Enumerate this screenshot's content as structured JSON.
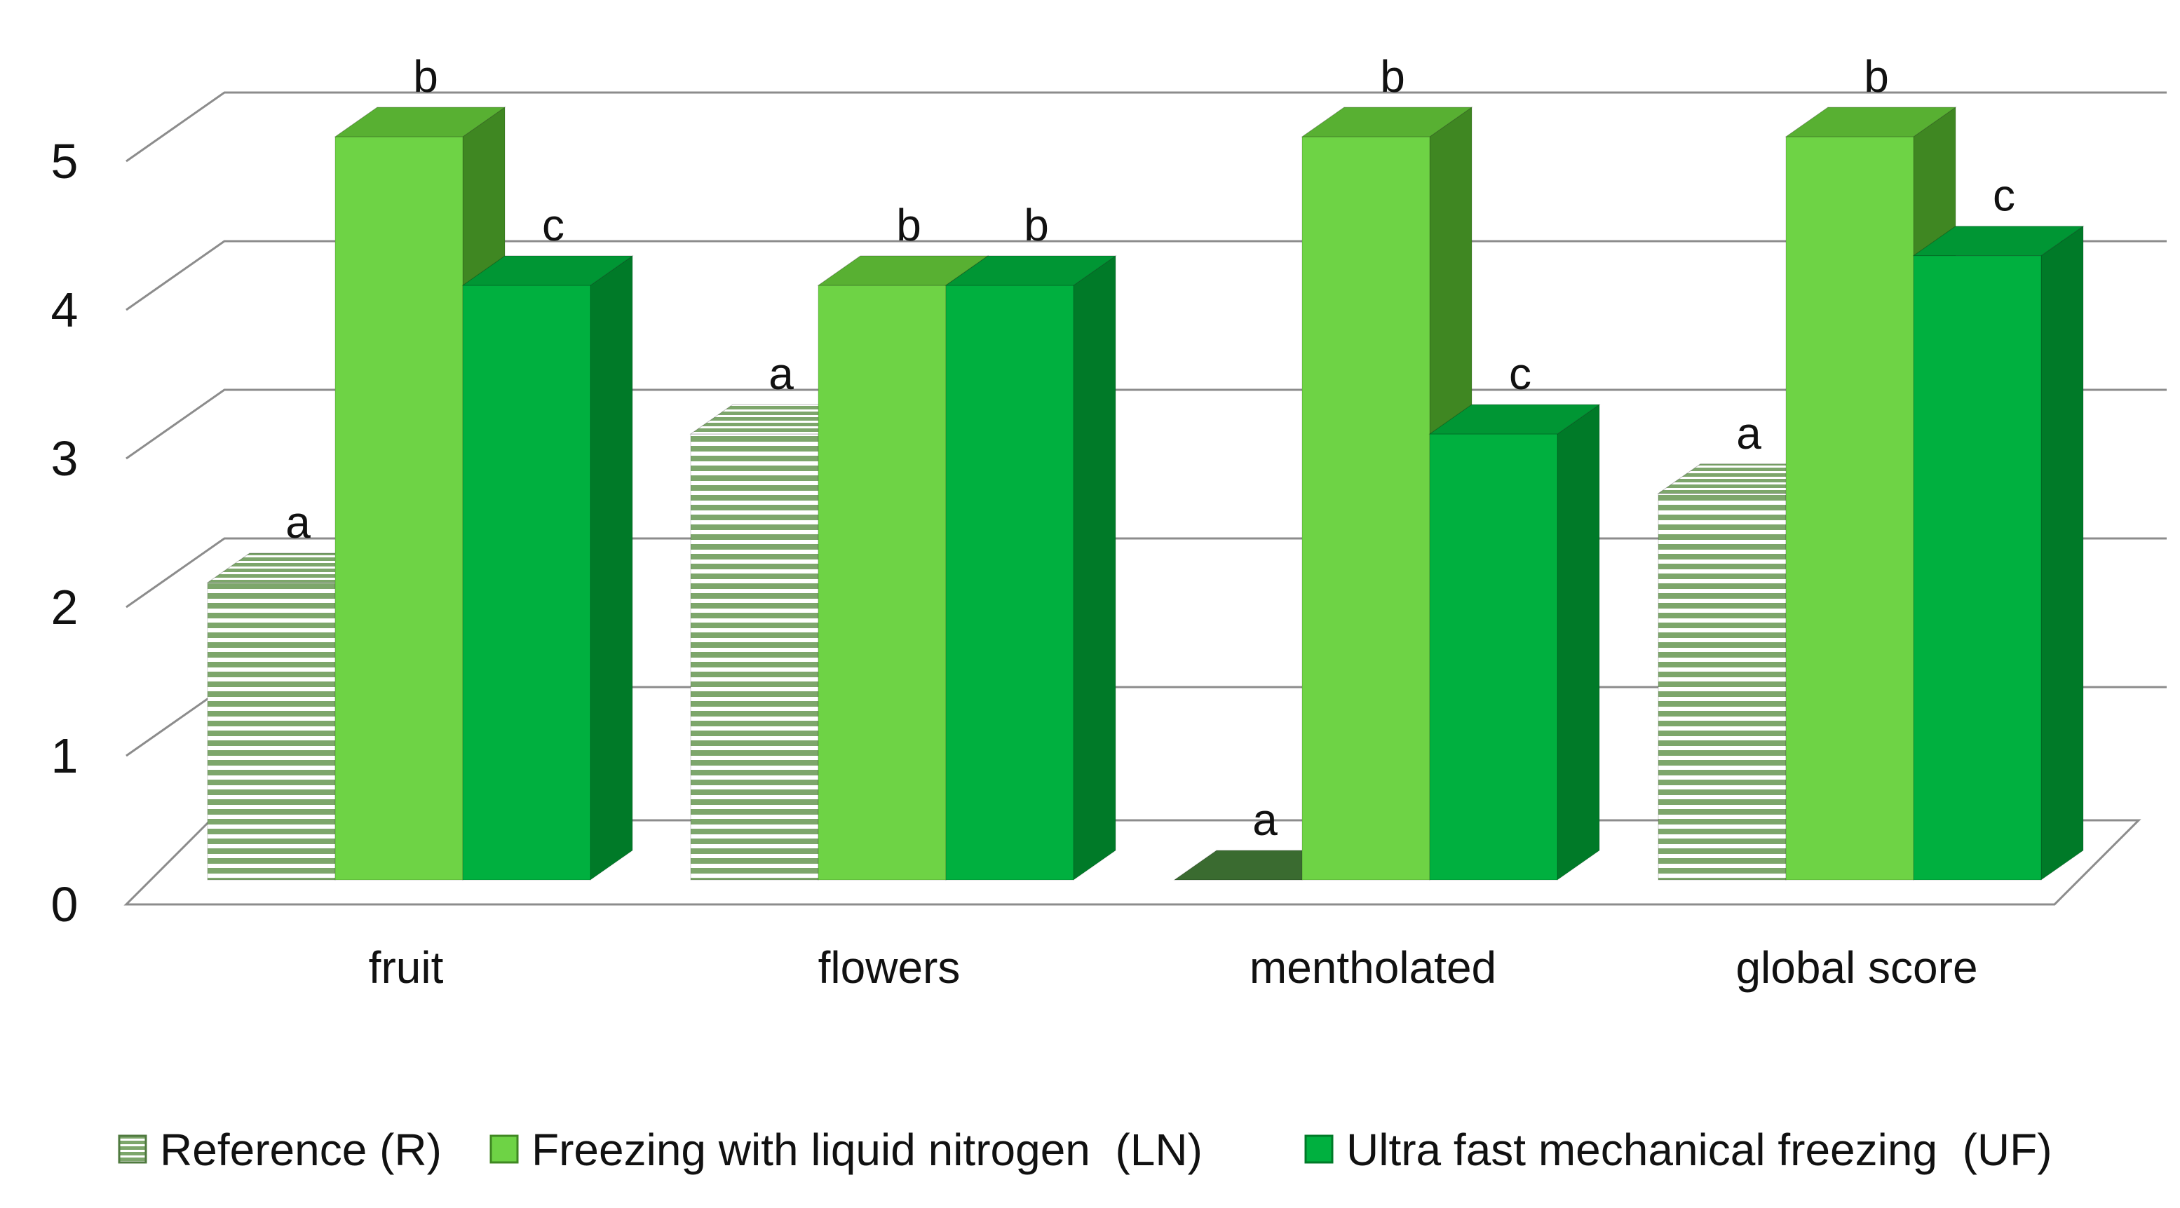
{
  "chart_data": {
    "type": "bar",
    "title": "",
    "xlabel": "",
    "ylabel": "",
    "ylim": [
      0,
      5
    ],
    "yticks": [
      "0",
      "1",
      "2",
      "3",
      "4",
      "5"
    ],
    "grid": true,
    "legend_position": "bottom",
    "categories": [
      "fruit",
      "flowers",
      "mentholated",
      "global score"
    ],
    "series": [
      {
        "name": "Reference (R)",
        "pattern": "horizontal-stripes",
        "colors": {
          "front": "#7da66b",
          "top": "#a6c592",
          "side": "#4f7a3f",
          "stripe": "#ffffff"
        },
        "values": [
          2,
          3,
          0,
          2.6
        ],
        "labels": [
          "a",
          "a",
          "a",
          "a"
        ]
      },
      {
        "name": "Freezing with liquid nitrogen  (LN)",
        "pattern": "solid",
        "colors": {
          "front": "#6ed345",
          "top": "#58b032",
          "side": "#3f8722"
        },
        "values": [
          5,
          4,
          5,
          5
        ],
        "labels": [
          "b",
          "b",
          "b",
          "b"
        ]
      },
      {
        "name": "Ultra fast mechanical freezing  (UF)",
        "pattern": "solid",
        "colors": {
          "front": "#00b03f",
          "top": "#009634",
          "side": "#007a28"
        },
        "values": [
          4,
          4,
          3,
          4.2
        ],
        "labels": [
          "c",
          "b",
          "c",
          "c"
        ]
      }
    ]
  }
}
